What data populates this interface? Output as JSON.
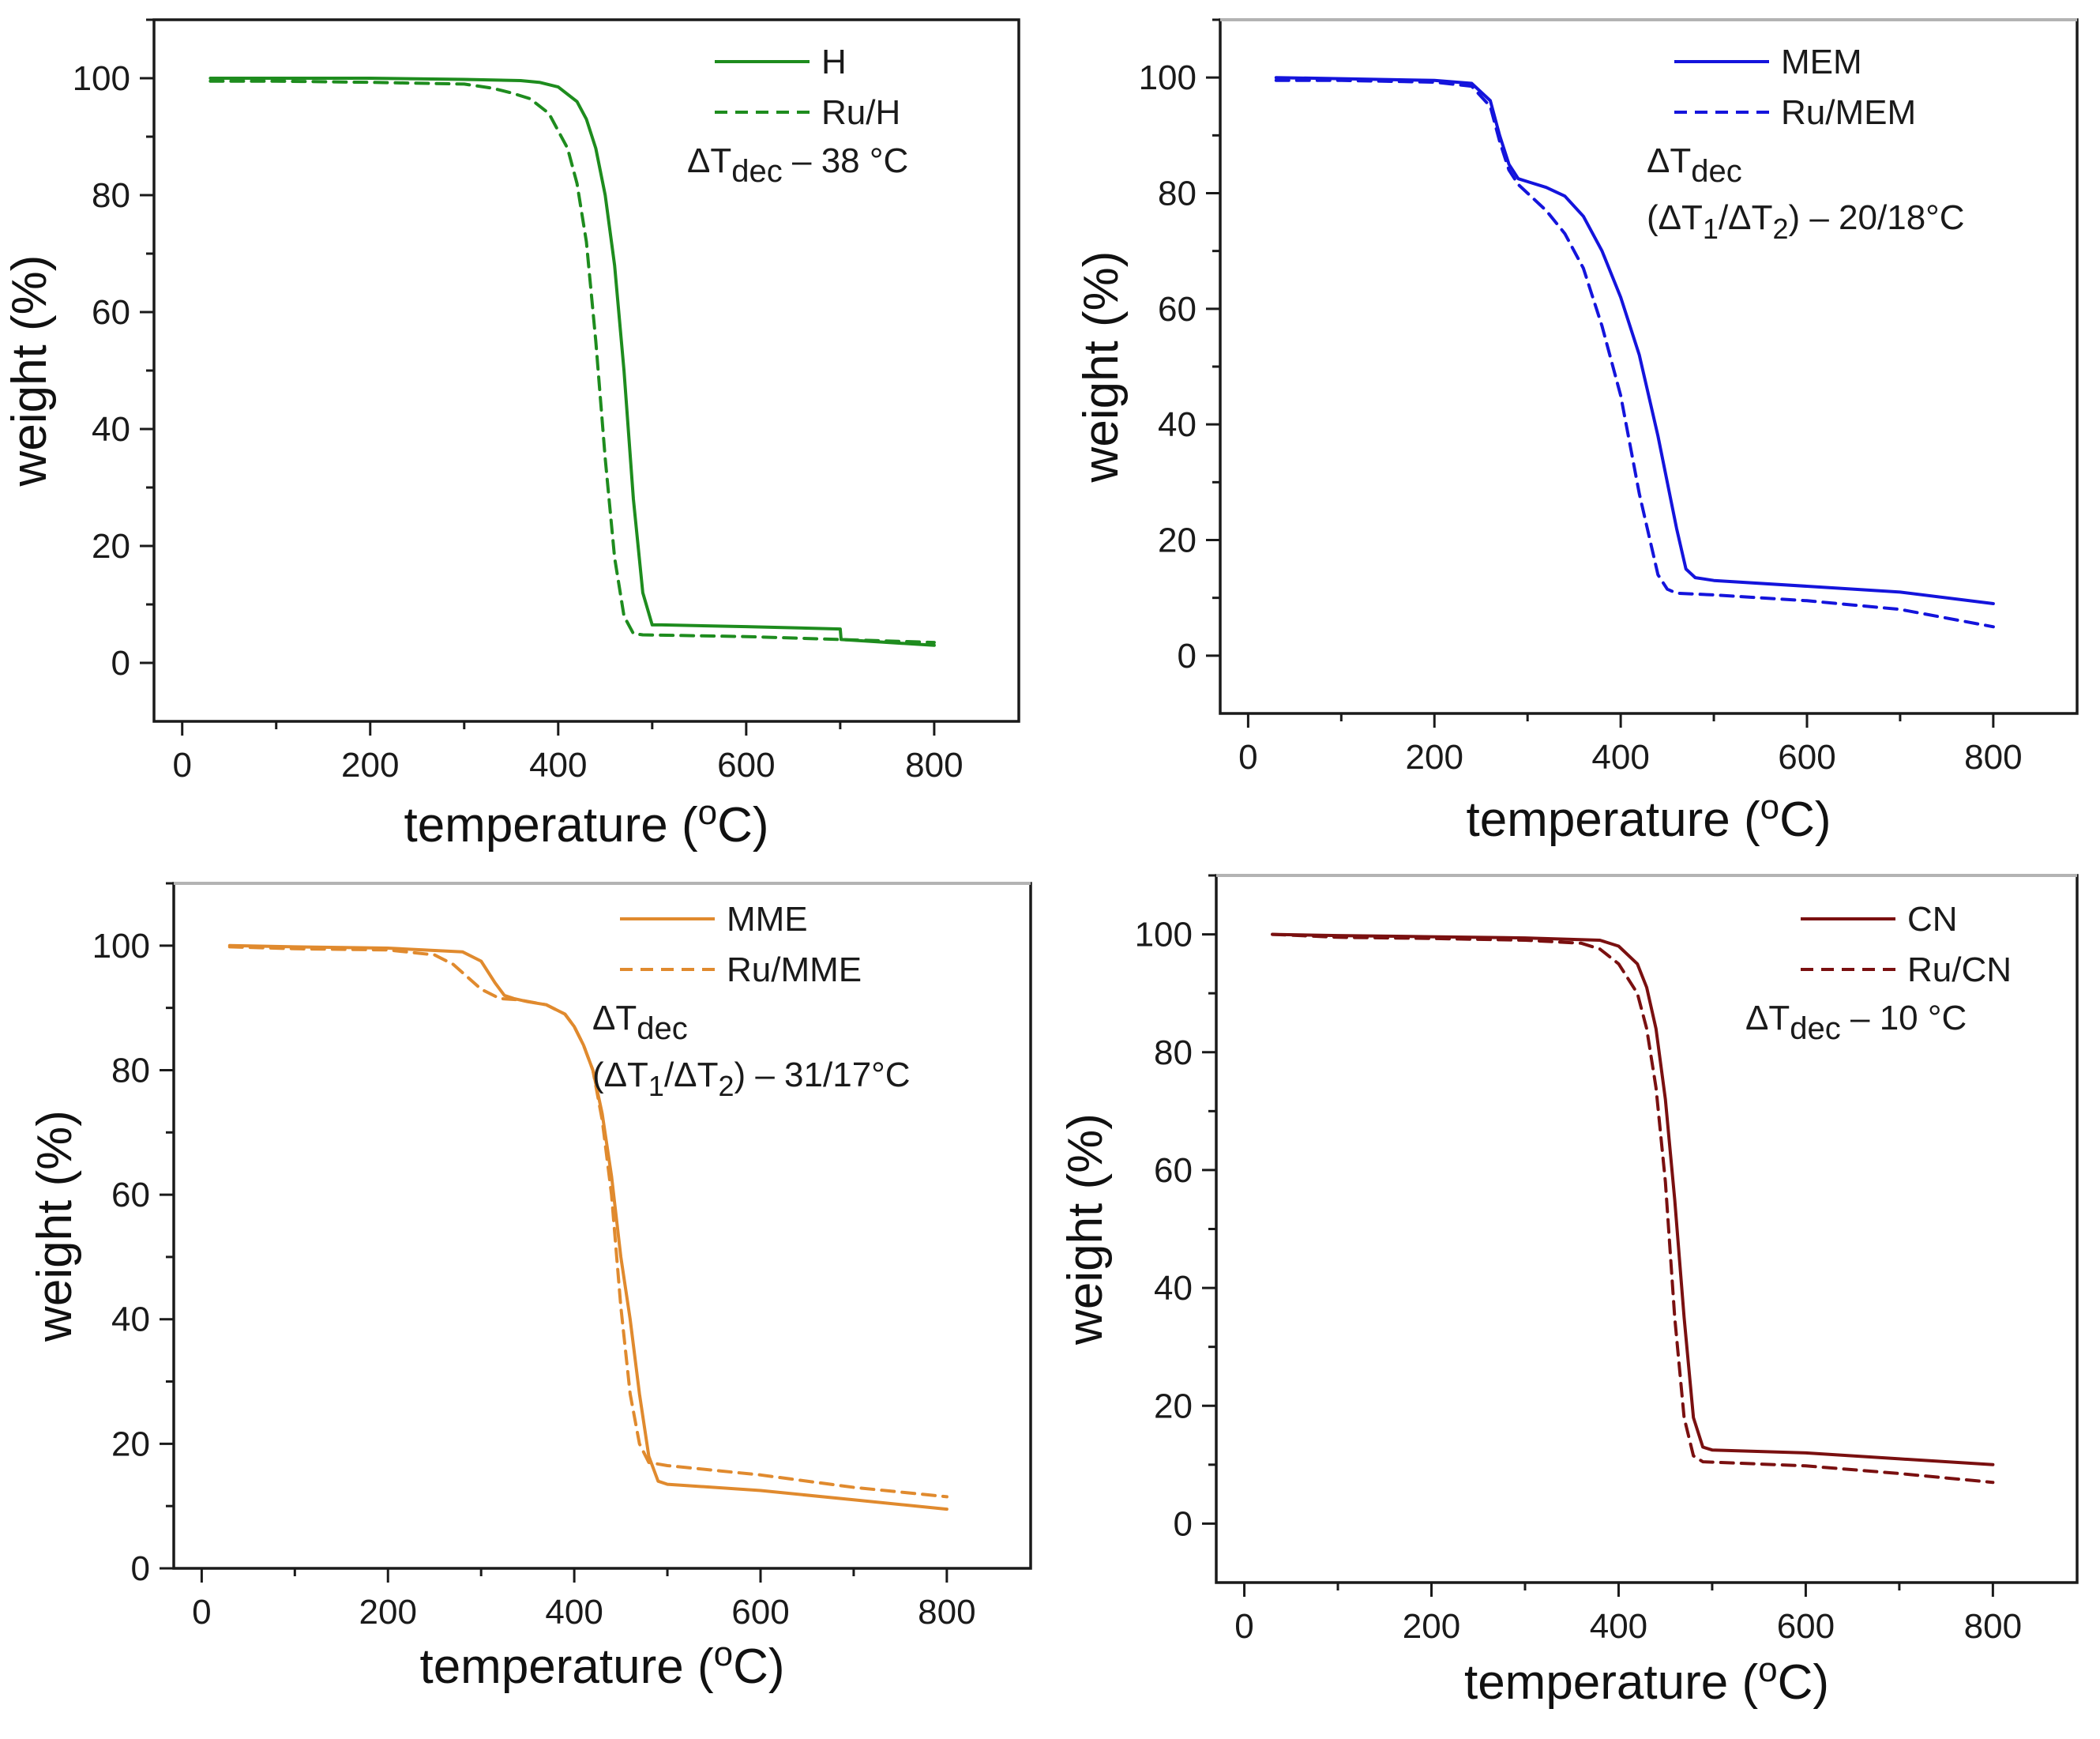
{
  "chart_data": [
    {
      "type": "line",
      "color": "#1e8c1e",
      "xlabel": "temperature (",
      "xlabel_sup": "o",
      "xlabel_end": "C)",
      "ylabel": "weight (%)",
      "xlim": [
        -30,
        890
      ],
      "ylim": [
        -10,
        110
      ],
      "xticks": [
        0,
        200,
        400,
        600,
        800
      ],
      "yticks": [
        0,
        20,
        40,
        60,
        80,
        100
      ],
      "legend_position": "top-right",
      "annotation": {
        "delta": "ΔT",
        "sub": "dec",
        "rest": " – 38 °C"
      },
      "series": [
        {
          "name": "H",
          "style": "solid",
          "x": [
            30,
            100,
            200,
            300,
            360,
            380,
            400,
            420,
            430,
            440,
            450,
            460,
            470,
            480,
            490,
            500,
            510,
            600,
            700,
            701,
            800
          ],
          "y": [
            100,
            100,
            100,
            99.8,
            99.6,
            99.3,
            98.5,
            96,
            93,
            88,
            80,
            68,
            50,
            28,
            12,
            6.5,
            6.5,
            6.2,
            5.8,
            4,
            3
          ]
        },
        {
          "name": "Ru/H",
          "style": "dashed",
          "x": [
            30,
            100,
            200,
            300,
            330,
            350,
            370,
            390,
            410,
            420,
            430,
            440,
            450,
            460,
            470,
            480,
            490,
            600,
            700,
            800
          ],
          "y": [
            99.5,
            99.5,
            99.3,
            99,
            98.3,
            97.5,
            96.5,
            94,
            88,
            82,
            72,
            55,
            35,
            18,
            8,
            5,
            4.8,
            4.5,
            4,
            3.5
          ]
        }
      ]
    },
    {
      "type": "line",
      "color": "#1414dc",
      "xlabel": "temperature (",
      "xlabel_sup": "o",
      "xlabel_end": "C)",
      "ylabel": "weight (%)",
      "xlim": [
        -30,
        890
      ],
      "ylim": [
        -10,
        110
      ],
      "xticks": [
        0,
        200,
        400,
        600,
        800
      ],
      "yticks": [
        0,
        20,
        40,
        60,
        80,
        100
      ],
      "legend_position": "top-right",
      "annotation": {
        "delta": "ΔT",
        "sub": "dec",
        "line2": "(ΔT",
        "sub1": "1",
        "mid": "/ΔT",
        "sub2": "2",
        "rest": ") – 20/18°C"
      },
      "series": [
        {
          "name": "MEM",
          "style": "solid",
          "x": [
            30,
            100,
            200,
            240,
            260,
            270,
            280,
            290,
            300,
            320,
            340,
            360,
            380,
            400,
            420,
            440,
            460,
            470,
            480,
            500,
            600,
            700,
            800
          ],
          "y": [
            100,
            99.8,
            99.5,
            99,
            96,
            90,
            85,
            82.5,
            82,
            81,
            79.5,
            76,
            70,
            62,
            52,
            38,
            22,
            15,
            13.5,
            13,
            12,
            11,
            9
          ]
        },
        {
          "name": "Ru/MEM",
          "style": "dashed",
          "x": [
            30,
            100,
            200,
            240,
            260,
            270,
            280,
            290,
            300,
            320,
            340,
            360,
            380,
            400,
            420,
            440,
            450,
            460,
            500,
            600,
            700,
            800
          ],
          "y": [
            99.5,
            99.5,
            99.2,
            98.5,
            95,
            89,
            84,
            81.5,
            80,
            77,
            73,
            67,
            57,
            45,
            28,
            14,
            11.5,
            10.8,
            10.5,
            9.5,
            8,
            5
          ]
        }
      ]
    },
    {
      "type": "line",
      "color": "#e08a2e",
      "xlabel": "temperature (",
      "xlabel_sup": "o",
      "xlabel_end": "C)",
      "ylabel": "weight (%)",
      "xlim": [
        -30,
        890
      ],
      "ylim": [
        0,
        110
      ],
      "xticks": [
        0,
        200,
        400,
        600,
        800
      ],
      "yticks": [
        0,
        20,
        40,
        60,
        80,
        100
      ],
      "legend_position": "top-right",
      "annotation": {
        "delta": "ΔT",
        "sub": "dec",
        "line2": "(ΔT",
        "sub1": "1",
        "mid": "/ΔT",
        "sub2": "2",
        "rest": ") – 31/17°C"
      },
      "series": [
        {
          "name": "MME",
          "style": "solid",
          "x": [
            30,
            100,
            200,
            280,
            300,
            315,
            325,
            335,
            350,
            370,
            390,
            400,
            410,
            420,
            430,
            440,
            450,
            460,
            470,
            480,
            490,
            500,
            600,
            700,
            800
          ],
          "y": [
            100,
            99.8,
            99.6,
            99,
            97.5,
            94,
            92,
            91.5,
            91,
            90.5,
            89,
            87,
            84,
            80,
            73,
            63,
            50,
            40,
            28,
            18,
            14,
            13.5,
            12.5,
            11,
            9.5
          ]
        },
        {
          "name": "Ru/MME",
          "style": "dashed",
          "x": [
            30,
            100,
            200,
            250,
            270,
            285,
            300,
            320,
            340,
            370,
            390,
            400,
            410,
            420,
            430,
            440,
            450,
            460,
            470,
            480,
            500,
            600,
            700,
            800
          ],
          "y": [
            99.8,
            99.5,
            99.3,
            98.5,
            97,
            95,
            93,
            91.5,
            91.3,
            90.5,
            89,
            87,
            84,
            80,
            72,
            60,
            42,
            28,
            20,
            17,
            16.5,
            15,
            13,
            11.5
          ]
        }
      ]
    },
    {
      "type": "line",
      "color": "#7a1010",
      "xlabel": "temperature (",
      "xlabel_sup": "o",
      "xlabel_end": "C)",
      "ylabel": "weight (%)",
      "xlim": [
        -30,
        890
      ],
      "ylim": [
        -10,
        110
      ],
      "xticks": [
        0,
        200,
        400,
        600,
        800
      ],
      "yticks": [
        0,
        20,
        40,
        60,
        80,
        100
      ],
      "legend_position": "top-right",
      "annotation": {
        "delta": "ΔT",
        "sub": "dec",
        "rest": " – 10 °C"
      },
      "series": [
        {
          "name": "CN",
          "style": "solid",
          "x": [
            30,
            100,
            200,
            300,
            380,
            400,
            420,
            430,
            440,
            450,
            460,
            470,
            480,
            490,
            500,
            600,
            700,
            800
          ],
          "y": [
            100,
            99.8,
            99.6,
            99.4,
            99,
            98,
            95,
            91,
            84,
            72,
            55,
            35,
            18,
            13,
            12.5,
            12,
            11,
            10
          ]
        },
        {
          "name": "Ru/CN",
          "style": "dashed",
          "x": [
            30,
            100,
            200,
            300,
            360,
            380,
            400,
            420,
            430,
            440,
            450,
            460,
            470,
            480,
            490,
            600,
            700,
            800
          ],
          "y": [
            100,
            99.5,
            99.3,
            99,
            98.5,
            97.5,
            95,
            90,
            84,
            74,
            58,
            35,
            18,
            11.5,
            10.5,
            9.8,
            8.5,
            7
          ]
        }
      ]
    }
  ]
}
